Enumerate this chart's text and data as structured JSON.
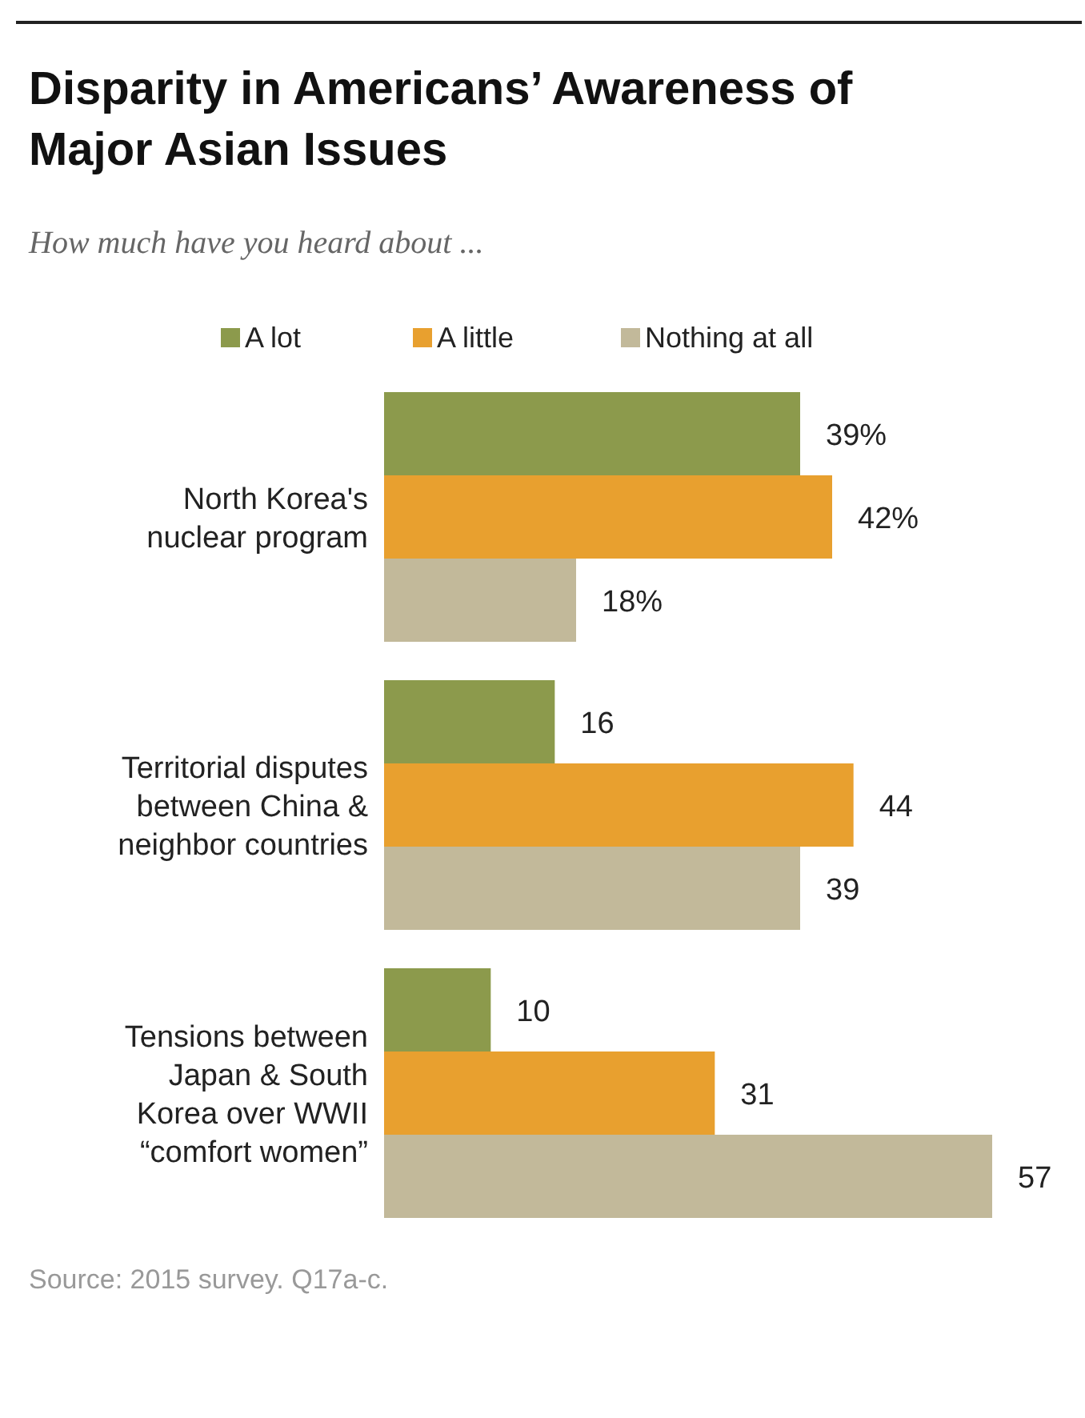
{
  "chart_data": {
    "type": "bar",
    "orientation": "horizontal",
    "title": "Disparity in Americans’ Awareness of\nMajor Asian Issues",
    "subtitle": "How much have you heard about ...",
    "categories": [
      "North Korea's\nnuclear program",
      "Territorial disputes\nbetween China &\nneighbor countries",
      "Tensions between\nJapan & South\nKorea over WWII\n“comfort women”"
    ],
    "series": [
      {
        "name": "A lot",
        "color": "#8c9a4c",
        "values": [
          39,
          16,
          10
        ],
        "value_labels": [
          "39%",
          "16",
          "10"
        ]
      },
      {
        "name": "A little",
        "color": "#e8a02f",
        "values": [
          42,
          44,
          31
        ],
        "value_labels": [
          "42%",
          "44",
          "31"
        ]
      },
      {
        "name": "Nothing at all",
        "color": "#c2b99a",
        "values": [
          18,
          39,
          57
        ],
        "value_labels": [
          "18%",
          "39",
          "57"
        ]
      }
    ],
    "legend": "top",
    "annotations": [
      "Source: 2015 survey. Q17a-c."
    ]
  }
}
